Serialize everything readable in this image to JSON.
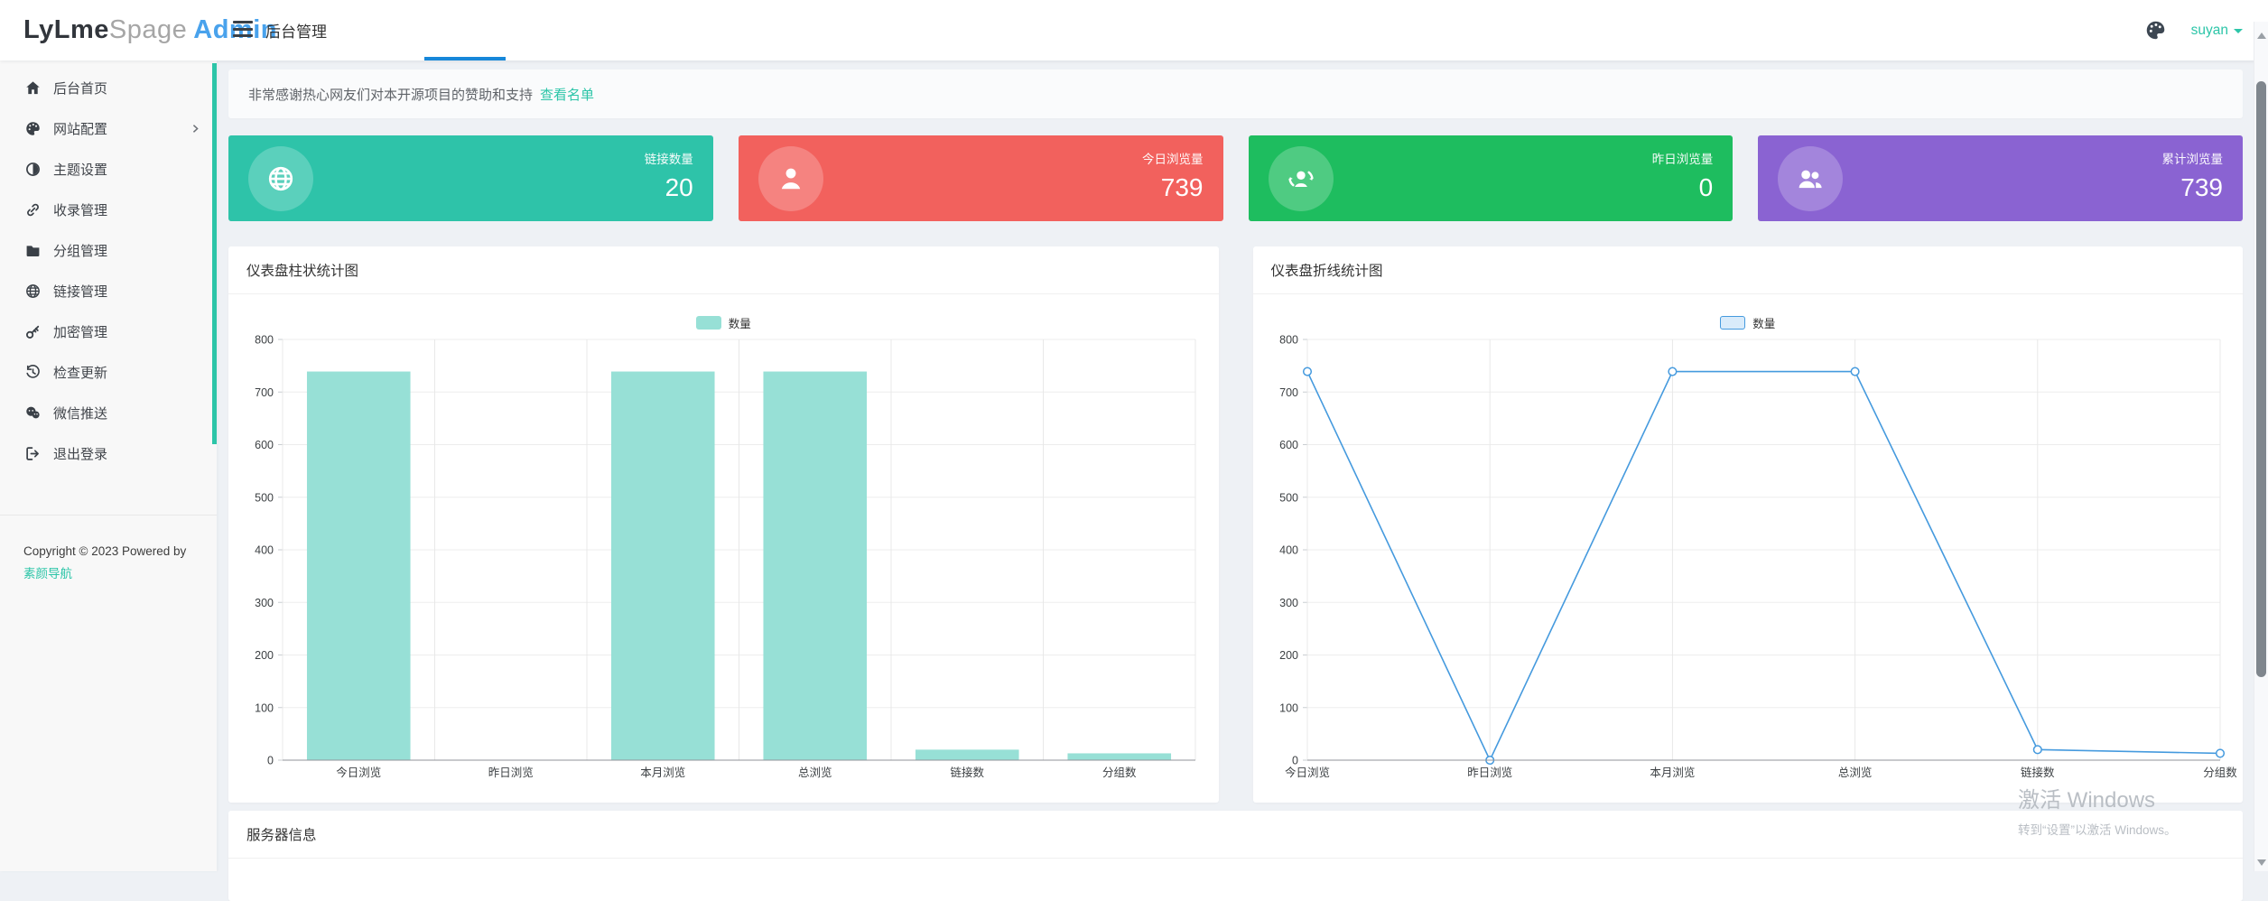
{
  "accent_color": "#2cc5a8",
  "topbar": {
    "logo": {
      "part1": "LyLme",
      "part2": "Spage",
      "part3": "Admin"
    },
    "title": "后台管理",
    "user": "suyan",
    "progress_color": "#1787d9"
  },
  "sidebar": {
    "items": [
      {
        "label": "后台首页",
        "icon": "home-icon"
      },
      {
        "label": "网站配置",
        "icon": "palette-icon",
        "has_submenu": true
      },
      {
        "label": "主题设置",
        "icon": "adjust-icon"
      },
      {
        "label": "收录管理",
        "icon": "link-icon"
      },
      {
        "label": "分组管理",
        "icon": "folder-icon"
      },
      {
        "label": "链接管理",
        "icon": "globe-icon"
      },
      {
        "label": "加密管理",
        "icon": "key-icon"
      },
      {
        "label": "检查更新",
        "icon": "history-icon"
      },
      {
        "label": "微信推送",
        "icon": "wechat-icon"
      },
      {
        "label": "退出登录",
        "icon": "signout-icon"
      }
    ],
    "copyright_line": "Copyright © 2023 Powered by",
    "copyright_link": "素颜导航"
  },
  "notice": {
    "text": "非常感谢热心网友们对本开源项目的赞助和支持",
    "link": "查看名单"
  },
  "stat_cards": [
    {
      "label": "链接数量",
      "value": "20",
      "color": "#2ec3a9",
      "icon": "globe-icon"
    },
    {
      "label": "今日浏览量",
      "value": "739",
      "color": "#f2615d",
      "icon": "user-icon"
    },
    {
      "label": "昨日浏览量",
      "value": "0",
      "color": "#1ebd5f",
      "icon": "user-sync-icon"
    },
    {
      "label": "累计浏览量",
      "value": "739",
      "color": "#8a63d2",
      "icon": "users-icon"
    }
  ],
  "chart_data": [
    {
      "type": "bar",
      "title": "仪表盘柱状统计图",
      "legend": [
        "数量"
      ],
      "categories": [
        "今日浏览",
        "昨日浏览",
        "本月浏览",
        "总浏览",
        "链接数",
        "分组数"
      ],
      "values": [
        739,
        0,
        739,
        739,
        20,
        13
      ],
      "xlabel": "",
      "ylabel": "",
      "ylim": [
        0,
        800
      ],
      "ytick_step": 100,
      "grid": true,
      "legend_position": "top",
      "bar_color": "#97e0d6"
    },
    {
      "type": "line",
      "title": "仪表盘折线统计图",
      "legend": [
        "数量"
      ],
      "categories": [
        "今日浏览",
        "昨日浏览",
        "本月浏览",
        "总浏览",
        "链接数",
        "分组数"
      ],
      "values": [
        739,
        0,
        739,
        739,
        20,
        13
      ],
      "xlabel": "",
      "ylabel": "",
      "ylim": [
        0,
        800
      ],
      "ytick_step": 100,
      "grid": true,
      "legend_position": "top",
      "line_color": "#459ade",
      "legend_fill": "#d9ebfa"
    }
  ],
  "server_section": {
    "title": "服务器信息"
  },
  "watermark": {
    "line1": "激活 Windows",
    "line2": "转到“设置”以激活 Windows。"
  }
}
